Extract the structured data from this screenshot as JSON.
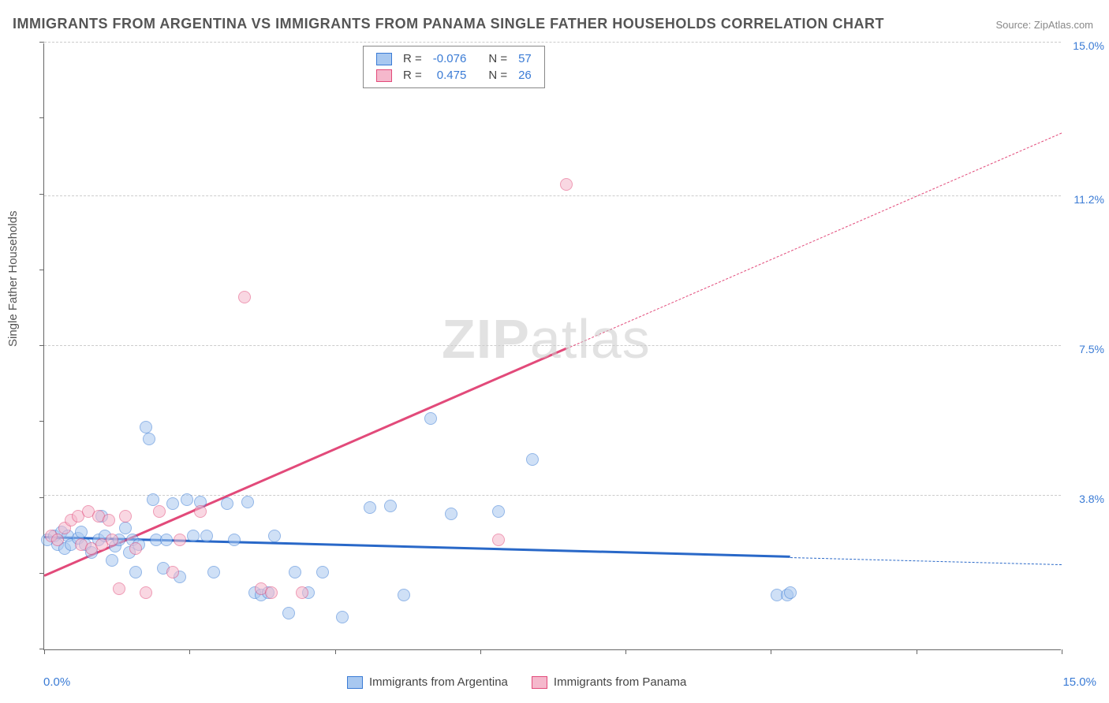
{
  "title": "IMMIGRANTS FROM ARGENTINA VS IMMIGRANTS FROM PANAMA SINGLE FATHER HOUSEHOLDS CORRELATION CHART",
  "source": "Source: ZipAtlas.com",
  "watermark_zip": "ZIP",
  "watermark_atlas": "atlas",
  "y_axis_label": "Single Father Households",
  "x_min_label": "0.0%",
  "x_max_label": "15.0%",
  "chart": {
    "type": "scatter",
    "xlim": [
      0,
      15
    ],
    "ylim": [
      0,
      15
    ],
    "y_ticks": [
      {
        "value": 3.8,
        "label": "3.8%",
        "color": "#3a7bd5"
      },
      {
        "value": 7.5,
        "label": "7.5%",
        "color": "#3a7bd5"
      },
      {
        "value": 11.2,
        "label": "11.2%",
        "color": "#3a7bd5"
      },
      {
        "value": 15.0,
        "label": "15.0%",
        "color": "#3a7bd5"
      }
    ],
    "x_tick_positions": [
      0,
      2.14,
      4.29,
      6.43,
      8.57,
      10.71,
      12.86,
      15
    ],
    "y_tick_positions": [
      0,
      1.88,
      3.75,
      5.63,
      7.5,
      9.38,
      11.25,
      13.13,
      15
    ],
    "grid_color": "#cccccc",
    "background_color": "#ffffff",
    "point_radius": 8,
    "series": [
      {
        "name": "Immigrants from Argentina",
        "fill": "#a8c8f0",
        "stroke": "#3a7bd5",
        "fill_opacity": 0.55,
        "trend": {
          "slope": -0.044,
          "intercept": 2.75,
          "x_data_max": 11.0,
          "color": "#2968c8",
          "width": 3
        },
        "R": -0.076,
        "N": 57,
        "points": [
          [
            0.05,
            2.7
          ],
          [
            0.15,
            2.8
          ],
          [
            0.2,
            2.6
          ],
          [
            0.25,
            2.9
          ],
          [
            0.3,
            2.5
          ],
          [
            0.35,
            2.8
          ],
          [
            0.4,
            2.6
          ],
          [
            0.5,
            2.75
          ],
          [
            0.55,
            2.9
          ],
          [
            0.6,
            2.6
          ],
          [
            0.7,
            2.4
          ],
          [
            0.8,
            2.7
          ],
          [
            0.85,
            3.3
          ],
          [
            0.9,
            2.8
          ],
          [
            1.0,
            2.2
          ],
          [
            1.05,
            2.55
          ],
          [
            1.1,
            2.7
          ],
          [
            1.2,
            3.0
          ],
          [
            1.25,
            2.4
          ],
          [
            1.3,
            2.7
          ],
          [
            1.35,
            1.9
          ],
          [
            1.4,
            2.6
          ],
          [
            1.5,
            5.5
          ],
          [
            1.55,
            5.2
          ],
          [
            1.6,
            3.7
          ],
          [
            1.65,
            2.7
          ],
          [
            1.75,
            2.0
          ],
          [
            1.8,
            2.7
          ],
          [
            1.9,
            3.6
          ],
          [
            2.0,
            1.8
          ],
          [
            2.1,
            3.7
          ],
          [
            2.2,
            2.8
          ],
          [
            2.3,
            3.65
          ],
          [
            2.4,
            2.8
          ],
          [
            2.5,
            1.9
          ],
          [
            2.7,
            3.6
          ],
          [
            2.8,
            2.7
          ],
          [
            3.0,
            3.65
          ],
          [
            3.1,
            1.4
          ],
          [
            3.2,
            1.35
          ],
          [
            3.3,
            1.4
          ],
          [
            3.4,
            2.8
          ],
          [
            3.6,
            0.9
          ],
          [
            3.7,
            1.9
          ],
          [
            3.9,
            1.4
          ],
          [
            4.1,
            1.9
          ],
          [
            4.4,
            0.8
          ],
          [
            4.8,
            3.5
          ],
          [
            5.1,
            3.55
          ],
          [
            5.3,
            1.35
          ],
          [
            5.7,
            5.7
          ],
          [
            6.0,
            3.35
          ],
          [
            6.7,
            3.4
          ],
          [
            7.2,
            4.7
          ],
          [
            10.8,
            1.35
          ],
          [
            10.95,
            1.35
          ],
          [
            11.0,
            1.4
          ]
        ]
      },
      {
        "name": "Immigrants from Panama",
        "fill": "#f5b8cc",
        "stroke": "#e24a7a",
        "fill_opacity": 0.55,
        "trend": {
          "slope": 0.73,
          "intercept": 1.8,
          "x_data_max": 7.7,
          "color": "#e24a7a",
          "width": 2.5
        },
        "R": 0.475,
        "N": 26,
        "points": [
          [
            0.1,
            2.8
          ],
          [
            0.2,
            2.7
          ],
          [
            0.3,
            3.0
          ],
          [
            0.4,
            3.2
          ],
          [
            0.5,
            3.3
          ],
          [
            0.55,
            2.6
          ],
          [
            0.65,
            3.4
          ],
          [
            0.7,
            2.5
          ],
          [
            0.8,
            3.3
          ],
          [
            0.85,
            2.6
          ],
          [
            0.95,
            3.2
          ],
          [
            1.0,
            2.7
          ],
          [
            1.1,
            1.5
          ],
          [
            1.2,
            3.3
          ],
          [
            1.35,
            2.5
          ],
          [
            1.5,
            1.4
          ],
          [
            1.7,
            3.4
          ],
          [
            1.9,
            1.9
          ],
          [
            2.0,
            2.7
          ],
          [
            2.3,
            3.4
          ],
          [
            2.95,
            8.7
          ],
          [
            3.2,
            1.5
          ],
          [
            3.35,
            1.4
          ],
          [
            3.8,
            1.4
          ],
          [
            6.7,
            2.7
          ],
          [
            7.7,
            11.5
          ]
        ]
      }
    ]
  },
  "legend_top": {
    "rows": [
      {
        "swatch_fill": "#a8c8f0",
        "swatch_stroke": "#3a7bd5",
        "r_label": "R =",
        "r_val": "-0.076",
        "n_label": "N =",
        "n_val": "57"
      },
      {
        "swatch_fill": "#f5b8cc",
        "swatch_stroke": "#e24a7a",
        "r_label": "R =",
        "r_val": " 0.475",
        "n_label": "N =",
        "n_val": "26"
      }
    ],
    "value_color": "#3a7bd5",
    "label_color": "#444444"
  },
  "legend_bottom": [
    {
      "swatch_fill": "#a8c8f0",
      "swatch_stroke": "#3a7bd5",
      "label": "Immigrants from Argentina"
    },
    {
      "swatch_fill": "#f5b8cc",
      "swatch_stroke": "#e24a7a",
      "label": "Immigrants from Panama"
    }
  ]
}
